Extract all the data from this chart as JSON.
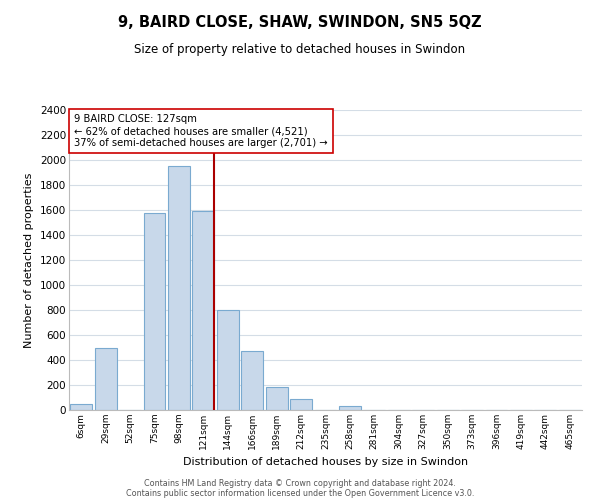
{
  "title": "9, BAIRD CLOSE, SHAW, SWINDON, SN5 5QZ",
  "subtitle": "Size of property relative to detached houses in Swindon",
  "xlabel": "Distribution of detached houses by size in Swindon",
  "ylabel": "Number of detached properties",
  "bar_labels": [
    "6sqm",
    "29sqm",
    "52sqm",
    "75sqm",
    "98sqm",
    "121sqm",
    "144sqm",
    "166sqm",
    "189sqm",
    "212sqm",
    "235sqm",
    "258sqm",
    "281sqm",
    "304sqm",
    "327sqm",
    "350sqm",
    "373sqm",
    "396sqm",
    "419sqm",
    "442sqm",
    "465sqm"
  ],
  "bar_values": [
    50,
    500,
    0,
    1580,
    1950,
    1590,
    800,
    470,
    185,
    90,
    0,
    35,
    0,
    0,
    0,
    0,
    0,
    0,
    0,
    0,
    0
  ],
  "bar_color": "#c8d8ea",
  "bar_edge_color": "#7aaad0",
  "vline_x": 5.42,
  "vline_color": "#aa0000",
  "annotation_title": "9 BAIRD CLOSE: 127sqm",
  "annotation_line1": "← 62% of detached houses are smaller (4,521)",
  "annotation_line2": "37% of semi-detached houses are larger (2,701) →",
  "annotation_box_color": "#ffffff",
  "annotation_box_edge": "#cc0000",
  "ylim": [
    0,
    2400
  ],
  "yticks": [
    0,
    200,
    400,
    600,
    800,
    1000,
    1200,
    1400,
    1600,
    1800,
    2000,
    2200,
    2400
  ],
  "footer1": "Contains HM Land Registry data © Crown copyright and database right 2024.",
  "footer2": "Contains public sector information licensed under the Open Government Licence v3.0.",
  "bg_color": "#ffffff",
  "grid_color": "#d4dde6"
}
